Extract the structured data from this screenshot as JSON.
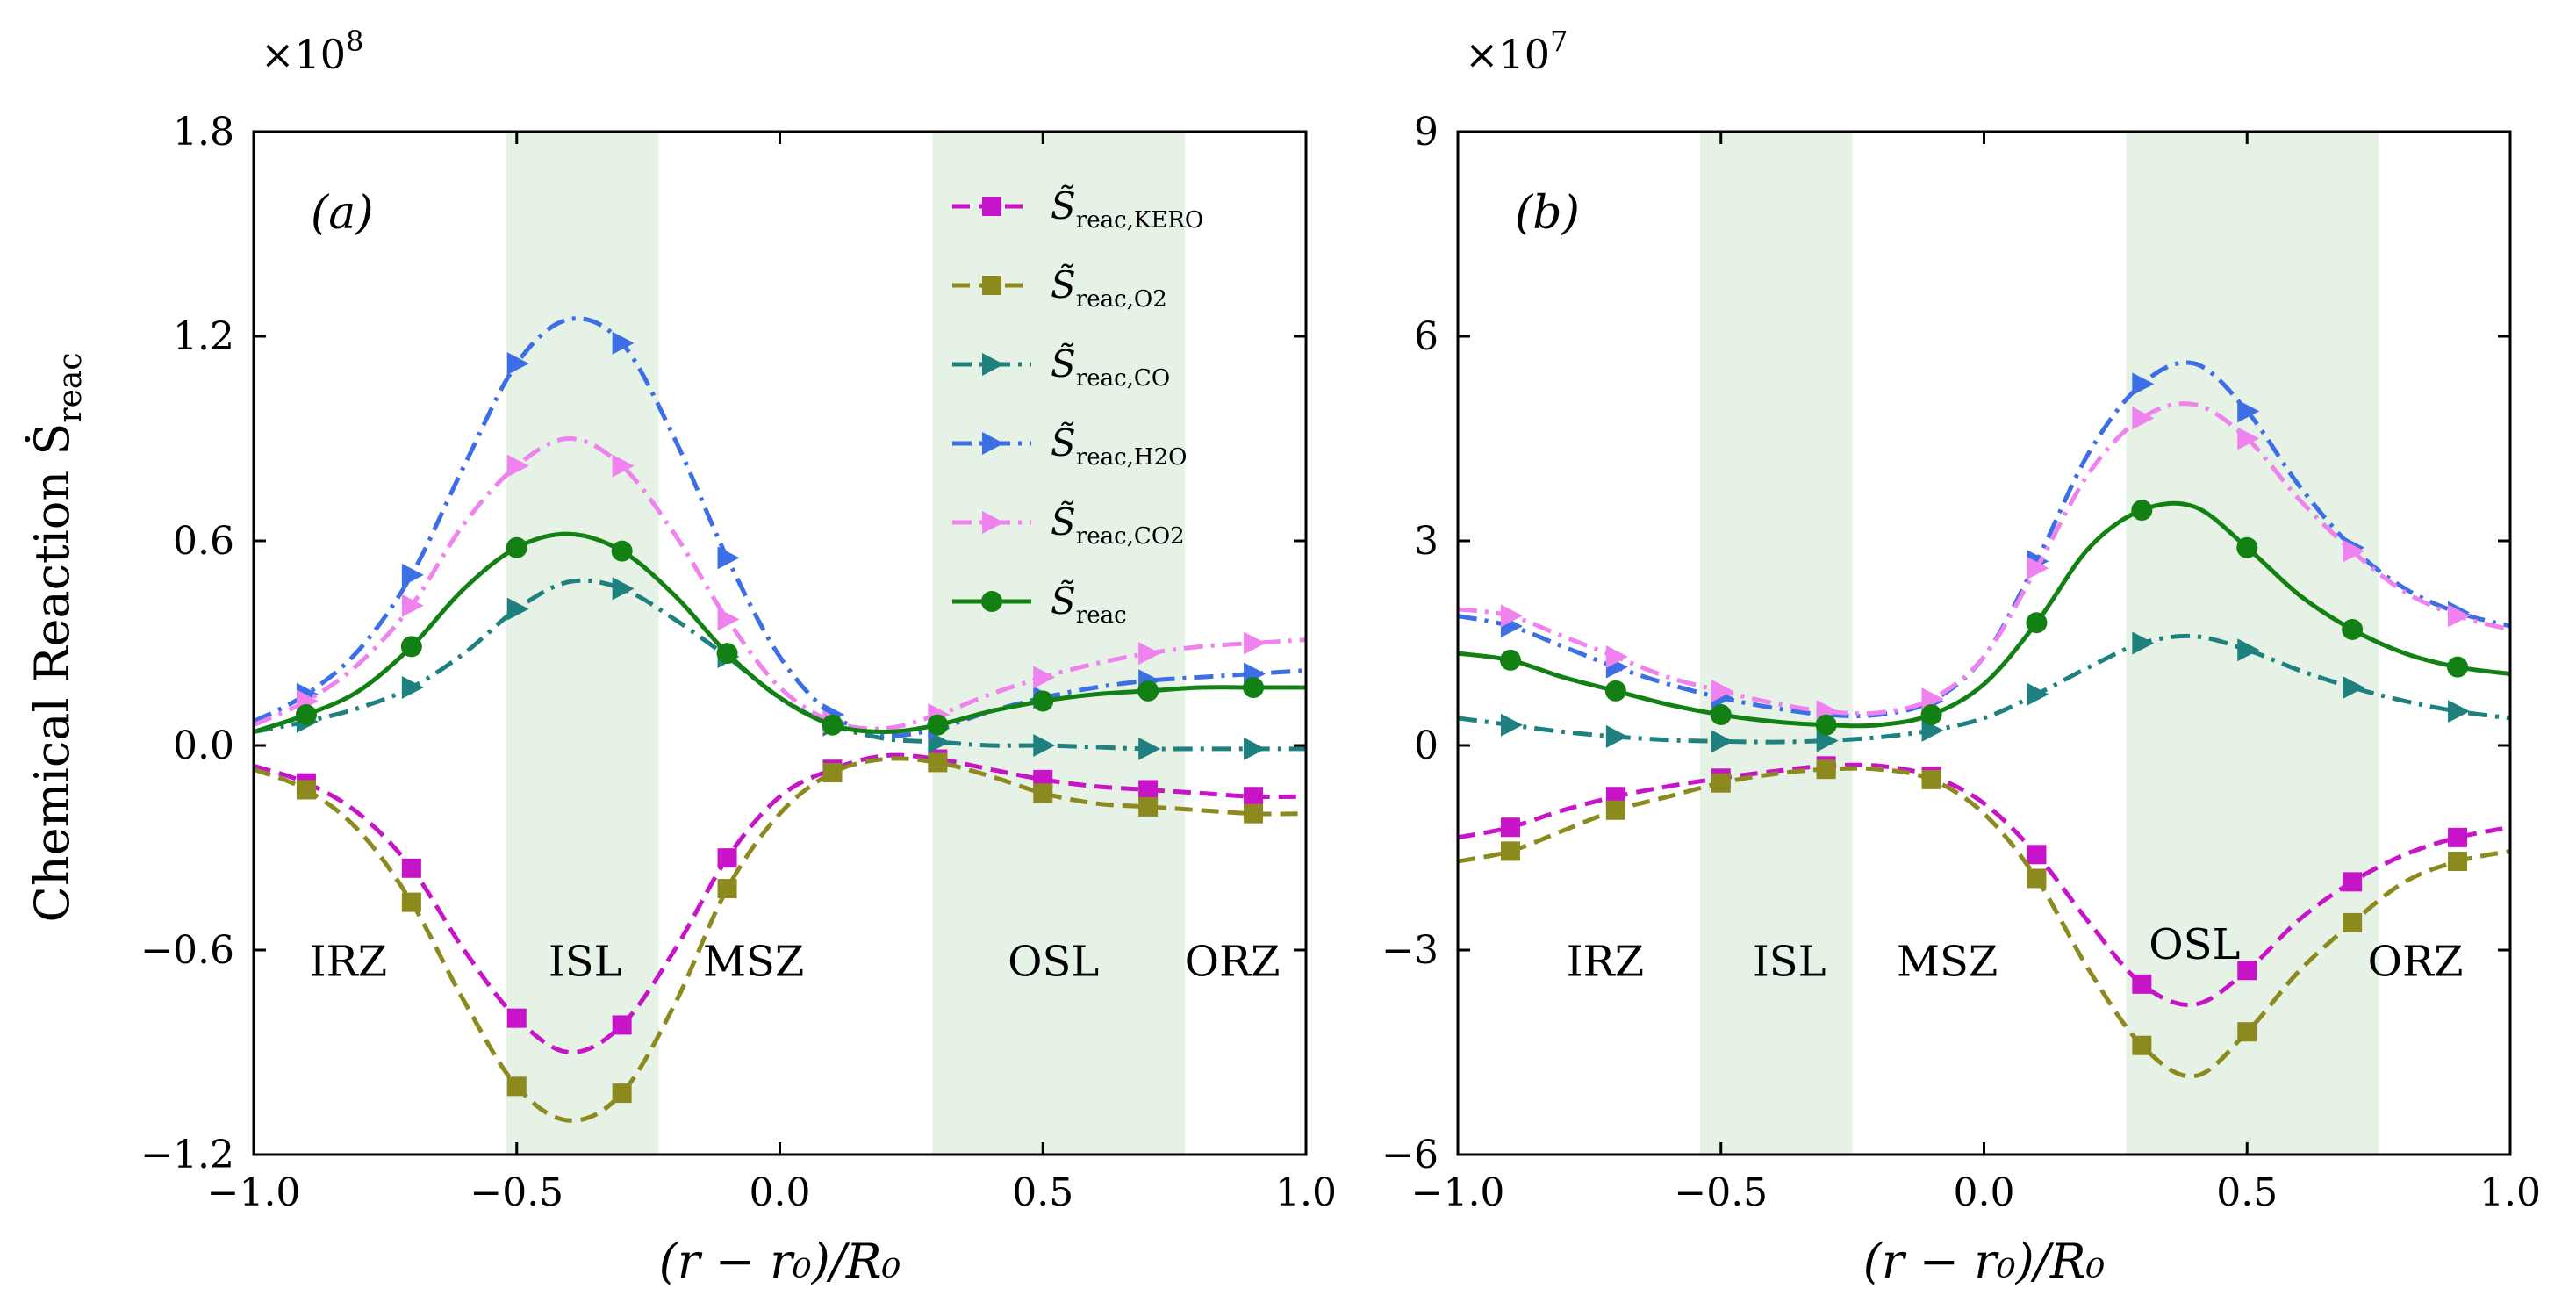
{
  "figure": {
    "ylabel": "Chemical Reaction Ṡ",
    "ylabel_sub": "reac",
    "xlabel": "(r − r₀)/R₀"
  },
  "chart_data": [
    {
      "type": "line",
      "panel_label": "(a)",
      "exponent_label": "×10",
      "exponent": "8",
      "scale_factor": 100000000,
      "xlim": [
        -1.0,
        1.0
      ],
      "ylim": [
        -1.2,
        1.8
      ],
      "xticks": [
        -1.0,
        -0.5,
        0.0,
        0.5,
        1.0
      ],
      "xtick_labels": [
        "−1.0",
        "−0.5",
        "0.0",
        "0.5",
        "1.0"
      ],
      "yticks": [
        -1.2,
        -0.6,
        0.0,
        0.6,
        1.2,
        1.8
      ],
      "ytick_labels": [
        "−1.2",
        "−0.6",
        "0.0",
        "0.6",
        "1.2",
        "1.8"
      ],
      "grid": false,
      "legend_placement": "top-right",
      "shaded_bands": [
        [
          -0.52,
          -0.23
        ],
        [
          0.29,
          0.77
        ]
      ],
      "zones": [
        {
          "label": "IRZ",
          "x": -0.82,
          "y": -0.63
        },
        {
          "label": "ISL",
          "x": -0.37,
          "y": -0.63
        },
        {
          "label": "MSZ",
          "x": -0.05,
          "y": -0.63
        },
        {
          "label": "OSL",
          "x": 0.52,
          "y": -0.63
        },
        {
          "label": "ORZ",
          "x": 0.86,
          "y": -0.63
        }
      ],
      "x": [
        -1.0,
        -0.9,
        -0.8,
        -0.7,
        -0.6,
        -0.5,
        -0.4,
        -0.3,
        -0.2,
        -0.1,
        0.0,
        0.1,
        0.2,
        0.3,
        0.4,
        0.5,
        0.6,
        0.7,
        0.8,
        0.9,
        1.0
      ],
      "series": [
        {
          "key": "kero",
          "name": "S̃ reac,KERO",
          "name_main": "S̃",
          "name_sub": "reac,KERO",
          "color": "#c814c8",
          "dash": "dashed",
          "marker": "square",
          "values": [
            -0.06,
            -0.11,
            -0.2,
            -0.36,
            -0.6,
            -0.8,
            -0.9,
            -0.82,
            -0.6,
            -0.33,
            -0.15,
            -0.07,
            -0.03,
            -0.04,
            -0.07,
            -0.1,
            -0.12,
            -0.13,
            -0.14,
            -0.15,
            -0.15
          ]
        },
        {
          "key": "o2",
          "name": "S̃ reac,O2",
          "name_main": "S̃",
          "name_sub": "reac,O2",
          "color": "#8c8a1e",
          "dash": "dashed",
          "marker": "square",
          "values": [
            -0.07,
            -0.13,
            -0.25,
            -0.46,
            -0.75,
            -1.0,
            -1.1,
            -1.02,
            -0.76,
            -0.42,
            -0.2,
            -0.08,
            -0.04,
            -0.05,
            -0.09,
            -0.14,
            -0.17,
            -0.18,
            -0.19,
            -0.2,
            -0.2
          ]
        },
        {
          "key": "co",
          "name": "S̃ reac,CO",
          "name_main": "S̃",
          "name_sub": "reac,CO",
          "color": "#1f8080",
          "dash": "dashdot",
          "marker": "triangle-right",
          "values": [
            0.04,
            0.07,
            0.11,
            0.17,
            0.27,
            0.4,
            0.48,
            0.46,
            0.37,
            0.26,
            0.14,
            0.06,
            0.02,
            0.01,
            0.0,
            0.0,
            -0.005,
            -0.01,
            -0.01,
            -0.01,
            -0.01
          ]
        },
        {
          "key": "h2o",
          "name": "S̃ reac,H2O",
          "name_main": "S̃",
          "name_sub": "reac,H2O",
          "color": "#3c6ee6",
          "dash": "dashdot",
          "marker": "triangle-right",
          "values": [
            0.07,
            0.15,
            0.28,
            0.5,
            0.82,
            1.12,
            1.25,
            1.18,
            0.9,
            0.55,
            0.26,
            0.09,
            0.03,
            0.05,
            0.1,
            0.14,
            0.17,
            0.19,
            0.2,
            0.21,
            0.22
          ]
        },
        {
          "key": "co2",
          "name": "S̃ reac,CO2",
          "name_main": "S̃",
          "name_sub": "reac,CO2",
          "color": "#ef82ef",
          "dash": "dashdot",
          "marker": "triangle-right",
          "values": [
            0.06,
            0.13,
            0.24,
            0.41,
            0.65,
            0.82,
            0.9,
            0.82,
            0.62,
            0.37,
            0.17,
            0.07,
            0.05,
            0.09,
            0.15,
            0.2,
            0.24,
            0.27,
            0.29,
            0.3,
            0.31
          ]
        },
        {
          "key": "total",
          "name": "S̃ reac",
          "name_main": "S̃",
          "name_sub": "reac",
          "color": "#138013",
          "dash": "solid",
          "marker": "circle",
          "values": [
            0.04,
            0.09,
            0.16,
            0.29,
            0.46,
            0.58,
            0.62,
            0.57,
            0.44,
            0.27,
            0.14,
            0.06,
            0.04,
            0.06,
            0.1,
            0.13,
            0.15,
            0.16,
            0.17,
            0.17,
            0.17
          ]
        }
      ]
    },
    {
      "type": "line",
      "panel_label": "(b)",
      "exponent_label": "×10",
      "exponent": "7",
      "scale_factor": 10000000,
      "xlim": [
        -1.0,
        1.0
      ],
      "ylim": [
        -6,
        9
      ],
      "xticks": [
        -1.0,
        -0.5,
        0.0,
        0.5,
        1.0
      ],
      "xtick_labels": [
        "−1.0",
        "−0.5",
        "0.0",
        "0.5",
        "1.0"
      ],
      "yticks": [
        -6,
        -3,
        0,
        3,
        6,
        9
      ],
      "ytick_labels": [
        "−6",
        "−3",
        "0",
        "3",
        "6",
        "9"
      ],
      "grid": false,
      "legend_placement": "none",
      "shaded_bands": [
        [
          -0.54,
          -0.25
        ],
        [
          0.27,
          0.75
        ]
      ],
      "zones": [
        {
          "label": "IRZ",
          "x": -0.72,
          "y": -3.15
        },
        {
          "label": "ISL",
          "x": -0.37,
          "y": -3.15
        },
        {
          "label": "MSZ",
          "x": -0.07,
          "y": -3.15
        },
        {
          "label": "OSL",
          "x": 0.4,
          "y": -2.9
        },
        {
          "label": "ORZ",
          "x": 0.82,
          "y": -3.15
        }
      ],
      "x": [
        -1.0,
        -0.9,
        -0.8,
        -0.7,
        -0.6,
        -0.5,
        -0.4,
        -0.3,
        -0.2,
        -0.1,
        0.0,
        0.1,
        0.2,
        0.3,
        0.4,
        0.5,
        0.6,
        0.7,
        0.8,
        0.9,
        1.0
      ],
      "series": [
        {
          "key": "kero",
          "name": "S̃ reac,KERO",
          "color": "#c814c8",
          "dash": "dashed",
          "marker": "square",
          "values": [
            -1.35,
            -1.2,
            -0.95,
            -0.75,
            -0.6,
            -0.48,
            -0.38,
            -0.3,
            -0.3,
            -0.45,
            -0.85,
            -1.6,
            -2.6,
            -3.5,
            -3.8,
            -3.3,
            -2.55,
            -2.0,
            -1.6,
            -1.35,
            -1.2
          ]
        },
        {
          "key": "o2",
          "name": "S̃ reac,O2",
          "color": "#8c8a1e",
          "dash": "dashed",
          "marker": "square",
          "values": [
            -1.7,
            -1.55,
            -1.25,
            -0.95,
            -0.75,
            -0.55,
            -0.42,
            -0.35,
            -0.35,
            -0.5,
            -1.0,
            -1.95,
            -3.3,
            -4.4,
            -4.85,
            -4.2,
            -3.3,
            -2.6,
            -2.0,
            -1.7,
            -1.55
          ]
        },
        {
          "key": "co",
          "name": "S̃ reac,CO",
          "color": "#1f8080",
          "dash": "dashdot",
          "marker": "triangle-right",
          "values": [
            0.4,
            0.3,
            0.2,
            0.13,
            0.08,
            0.06,
            0.05,
            0.07,
            0.12,
            0.22,
            0.4,
            0.75,
            1.15,
            1.5,
            1.6,
            1.4,
            1.1,
            0.85,
            0.65,
            0.5,
            0.4
          ]
        },
        {
          "key": "h2o",
          "name": "S̃ reac,H2O",
          "color": "#3c6ee6",
          "dash": "dashdot",
          "marker": "triangle-right",
          "values": [
            1.9,
            1.75,
            1.45,
            1.15,
            0.9,
            0.7,
            0.55,
            0.45,
            0.45,
            0.65,
            1.3,
            2.7,
            4.3,
            5.3,
            5.6,
            4.9,
            3.8,
            2.9,
            2.3,
            1.95,
            1.75
          ]
        },
        {
          "key": "co2",
          "name": "S̃ reac,CO2",
          "color": "#ef82ef",
          "dash": "dashdot",
          "marker": "triangle-right",
          "values": [
            2.0,
            1.9,
            1.6,
            1.3,
            1.0,
            0.8,
            0.62,
            0.5,
            0.48,
            0.68,
            1.3,
            2.6,
            4.0,
            4.8,
            5.0,
            4.5,
            3.6,
            2.85,
            2.25,
            1.9,
            1.7
          ]
        },
        {
          "key": "total",
          "name": "S̃ reac",
          "color": "#138013",
          "dash": "solid",
          "marker": "circle",
          "values": [
            1.35,
            1.25,
            1.0,
            0.8,
            0.6,
            0.45,
            0.35,
            0.3,
            0.3,
            0.45,
            0.9,
            1.8,
            2.9,
            3.45,
            3.5,
            2.9,
            2.2,
            1.7,
            1.35,
            1.15,
            1.05
          ]
        }
      ]
    }
  ]
}
